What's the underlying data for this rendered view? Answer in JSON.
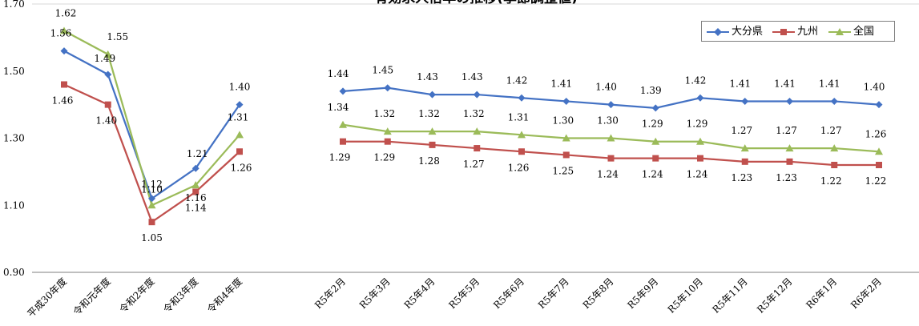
{
  "chart_data": {
    "type": "line",
    "title": "有効求人倍率の推移(季節調整値)",
    "ylim": [
      0.9,
      1.7
    ],
    "yticks": [
      "0.90",
      "1.10",
      "1.30",
      "1.50",
      "1.70"
    ],
    "legend_position": "top-right",
    "groups": [
      {
        "categories": [
          "平成30年度",
          "令和元年度",
          "令和2年度",
          "令和3年度",
          "令和4年度"
        ],
        "series": [
          {
            "name": "大分県",
            "color": "#4472c4",
            "marker": "diamond",
            "values": [
              1.56,
              1.49,
              1.12,
              1.21,
              1.4
            ]
          },
          {
            "name": "九州",
            "color": "#c0504d",
            "marker": "square",
            "values": [
              1.46,
              1.4,
              1.05,
              1.14,
              1.26
            ]
          },
          {
            "name": "全国",
            "color": "#9bbb59",
            "marker": "triangle",
            "values": [
              1.62,
              1.55,
              1.1,
              1.16,
              1.31
            ]
          }
        ]
      },
      {
        "categories": [
          "R5年2月",
          "R5年3月",
          "R5年4月",
          "R5年5月",
          "R5年6月",
          "R5年7月",
          "R5年8月",
          "R5年9月",
          "R5年10月",
          "R5年11月",
          "R5年12月",
          "R6年1月",
          "R6年2月"
        ],
        "series": [
          {
            "name": "大分県",
            "color": "#4472c4",
            "marker": "diamond",
            "values": [
              1.44,
              1.45,
              1.43,
              1.43,
              1.42,
              1.41,
              1.4,
              1.39,
              1.42,
              1.41,
              1.41,
              1.41,
              1.4
            ]
          },
          {
            "name": "九州",
            "color": "#c0504d",
            "marker": "square",
            "values": [
              1.29,
              1.29,
              1.28,
              1.27,
              1.26,
              1.25,
              1.24,
              1.24,
              1.24,
              1.23,
              1.23,
              1.22,
              1.22
            ]
          },
          {
            "name": "全国",
            "color": "#9bbb59",
            "marker": "triangle",
            "values": [
              1.34,
              1.32,
              1.32,
              1.32,
              1.31,
              1.3,
              1.3,
              1.29,
              1.29,
              1.27,
              1.27,
              1.27,
              1.26
            ]
          }
        ]
      }
    ],
    "legend": [
      "大分県",
      "九州",
      "全国"
    ]
  }
}
